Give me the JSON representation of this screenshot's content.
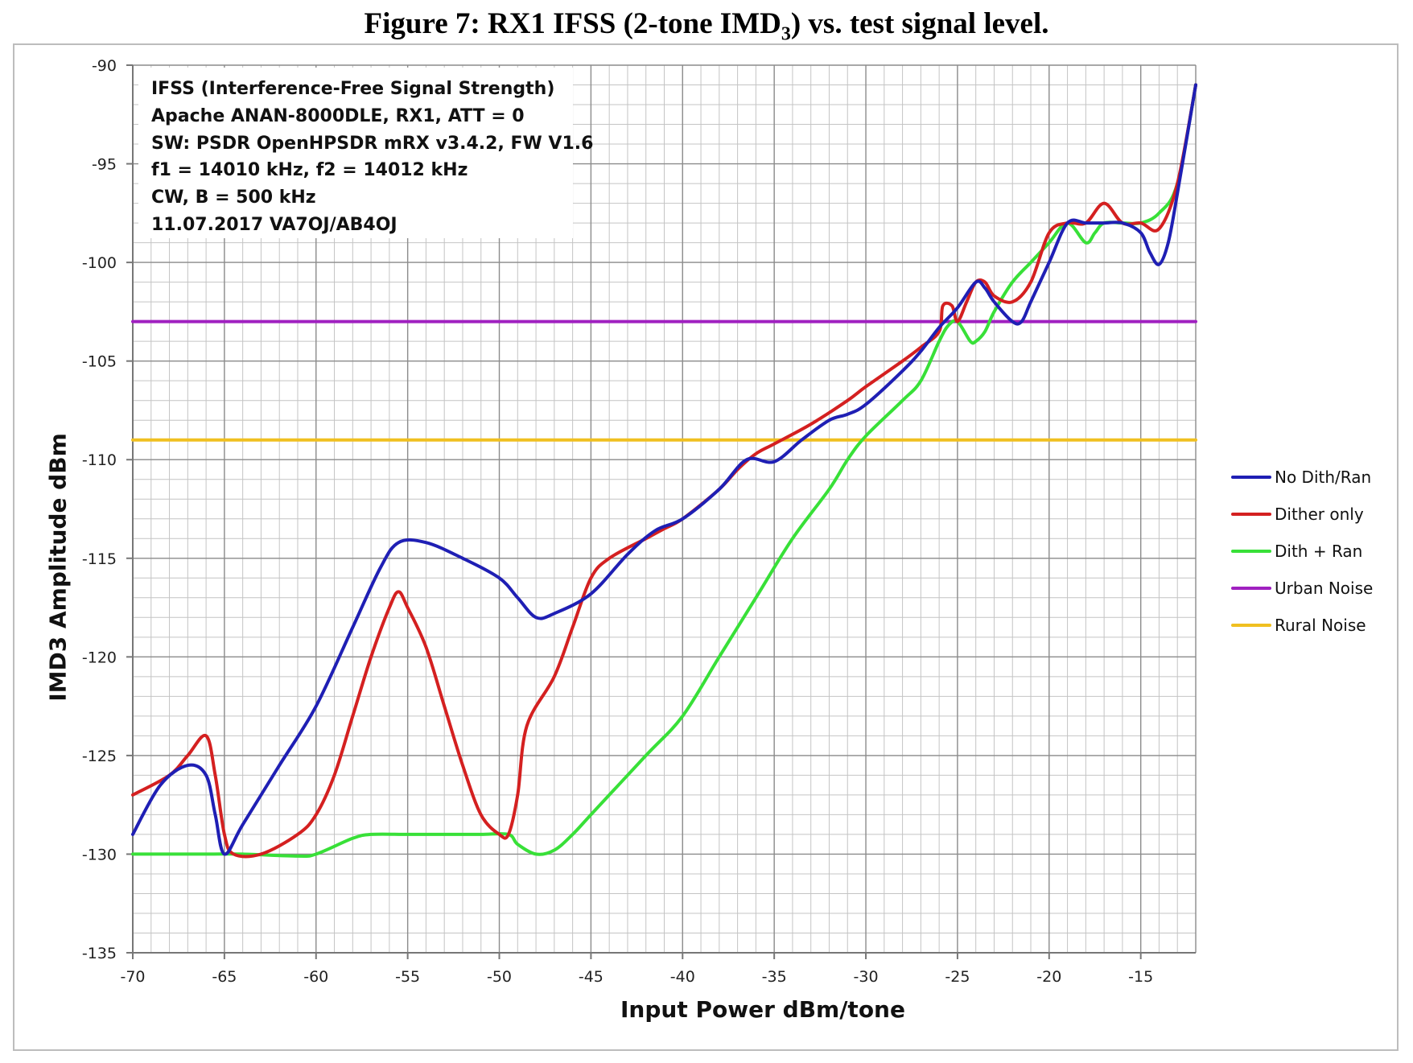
{
  "figure": {
    "title_main": "Figure 7: RX1 IFSS (2-tone IMD",
    "title_sub": "3",
    "title_tail": ") vs. test signal level."
  },
  "info_box": [
    "IFSS (Interference-Free Signal Strength)",
    "Apache ANAN-8000DLE, RX1, ATT = 0",
    "SW: PSDR OpenHPSDR mRX v3.4.2,  FW V1.6",
    "f1 = 14010  kHz, f2 = 14012  kHz",
    "CW, B = 500  kHz",
    "11.07.2017   VA7OJ/AB4OJ"
  ],
  "chart_data": {
    "type": "line",
    "xlabel": "Input Power dBm/tone",
    "ylabel": "IMD3 Amplitude  dBm",
    "xlim": [
      -70,
      -12
    ],
    "ylim": [
      -135,
      -90
    ],
    "xticks": [
      -70,
      -65,
      -60,
      -55,
      -50,
      -45,
      -40,
      -35,
      -30,
      -25,
      -20,
      -15
    ],
    "xtick_labels": [
      "-70",
      "-65",
      "-60",
      "-55",
      "-50",
      "-45",
      "-40",
      "-35",
      "-30",
      "-25",
      "-20",
      "-15"
    ],
    "yticks": [
      -90,
      -95,
      -100,
      -105,
      -110,
      -115,
      -120,
      -125,
      -130,
      -135
    ],
    "ytick_labels": [
      "-90",
      "-95",
      "-100",
      "-105",
      "-110",
      "-115",
      "-120",
      "-125",
      "-130",
      "-135"
    ],
    "grid": true,
    "legend_position": "right",
    "series": [
      {
        "name": "No Dith/Ran",
        "color": "#1f1fb4",
        "points": [
          [
            -70,
            -129
          ],
          [
            -68.5,
            -126.5
          ],
          [
            -67,
            -125.5
          ],
          [
            -66,
            -126
          ],
          [
            -65.5,
            -128
          ],
          [
            -65,
            -130
          ],
          [
            -64,
            -128.5
          ],
          [
            -62,
            -125.5
          ],
          [
            -60,
            -122.5
          ],
          [
            -58,
            -118.5
          ],
          [
            -56.5,
            -115.5
          ],
          [
            -55.5,
            -114.2
          ],
          [
            -54,
            -114.2
          ],
          [
            -52,
            -115
          ],
          [
            -50,
            -116
          ],
          [
            -49,
            -117
          ],
          [
            -48,
            -118
          ],
          [
            -47,
            -117.8
          ],
          [
            -45,
            -116.8
          ],
          [
            -43,
            -114.8
          ],
          [
            -41.5,
            -113.6
          ],
          [
            -40,
            -113
          ],
          [
            -38,
            -111.5
          ],
          [
            -36.5,
            -110
          ],
          [
            -35,
            -110.1
          ],
          [
            -33.5,
            -109
          ],
          [
            -32,
            -108
          ],
          [
            -31,
            -107.7
          ],
          [
            -30,
            -107.2
          ],
          [
            -28,
            -105.5
          ],
          [
            -27,
            -104.5
          ],
          [
            -26,
            -103.3
          ],
          [
            -25,
            -102.3
          ],
          [
            -24,
            -101
          ],
          [
            -23.5,
            -101.3
          ],
          [
            -23,
            -102
          ],
          [
            -22,
            -103
          ],
          [
            -21.5,
            -103
          ],
          [
            -21,
            -102
          ],
          [
            -20,
            -100
          ],
          [
            -19,
            -98
          ],
          [
            -18,
            -98
          ],
          [
            -17,
            -98
          ],
          [
            -16,
            -98
          ],
          [
            -15,
            -98.5
          ],
          [
            -14.5,
            -99.5
          ],
          [
            -14,
            -100.1
          ],
          [
            -13.5,
            -99
          ],
          [
            -13,
            -96.5
          ],
          [
            -12,
            -91
          ]
        ]
      },
      {
        "name": "Dither only",
        "color": "#d42020",
        "points": [
          [
            -70,
            -127
          ],
          [
            -68,
            -126
          ],
          [
            -67,
            -125
          ],
          [
            -66,
            -124
          ],
          [
            -65.5,
            -126
          ],
          [
            -65,
            -129
          ],
          [
            -64.5,
            -130
          ],
          [
            -63,
            -130
          ],
          [
            -61,
            -129
          ],
          [
            -60,
            -128
          ],
          [
            -59,
            -126
          ],
          [
            -58,
            -123
          ],
          [
            -57,
            -120
          ],
          [
            -56,
            -117.5
          ],
          [
            -55.5,
            -116.7
          ],
          [
            -55,
            -117.5
          ],
          [
            -54,
            -119.5
          ],
          [
            -53,
            -122.5
          ],
          [
            -52,
            -125.5
          ],
          [
            -51,
            -128
          ],
          [
            -50,
            -129
          ],
          [
            -49.5,
            -129
          ],
          [
            -49,
            -127
          ],
          [
            -48.5,
            -123.5
          ],
          [
            -47,
            -121
          ],
          [
            -46,
            -118.5
          ],
          [
            -45,
            -116
          ],
          [
            -44,
            -115
          ],
          [
            -42,
            -114
          ],
          [
            -41,
            -113.5
          ],
          [
            -40,
            -113
          ],
          [
            -38,
            -111.5
          ],
          [
            -37,
            -110.5
          ],
          [
            -36,
            -109.7
          ],
          [
            -35,
            -109.2
          ],
          [
            -33,
            -108.2
          ],
          [
            -31,
            -107
          ],
          [
            -30,
            -106.3
          ],
          [
            -28,
            -105
          ],
          [
            -27,
            -104.3
          ],
          [
            -26,
            -103.5
          ],
          [
            -25.8,
            -102.2
          ],
          [
            -25.3,
            -102.2
          ],
          [
            -25,
            -103
          ],
          [
            -24.5,
            -102
          ],
          [
            -24,
            -101
          ],
          [
            -23.5,
            -101
          ],
          [
            -23,
            -101.7
          ],
          [
            -22,
            -102
          ],
          [
            -21,
            -101
          ],
          [
            -20,
            -98.5
          ],
          [
            -19,
            -98
          ],
          [
            -18,
            -98
          ],
          [
            -17,
            -97
          ],
          [
            -16,
            -98
          ],
          [
            -15,
            -98
          ],
          [
            -14,
            -98.3
          ],
          [
            -13,
            -96
          ],
          [
            -12,
            -91
          ]
        ]
      },
      {
        "name": "Dith + Ran",
        "color": "#38e038",
        "points": [
          [
            -70,
            -130
          ],
          [
            -66,
            -130
          ],
          [
            -64,
            -130
          ],
          [
            -61,
            -130.1
          ],
          [
            -60,
            -130
          ],
          [
            -58,
            -129.2
          ],
          [
            -57,
            -129
          ],
          [
            -55,
            -129
          ],
          [
            -53,
            -129
          ],
          [
            -51,
            -129
          ],
          [
            -49.5,
            -129
          ],
          [
            -49,
            -129.5
          ],
          [
            -48,
            -130
          ],
          [
            -47,
            -129.8
          ],
          [
            -46,
            -129
          ],
          [
            -45,
            -128
          ],
          [
            -42,
            -125
          ],
          [
            -40,
            -123
          ],
          [
            -38,
            -120
          ],
          [
            -36,
            -117
          ],
          [
            -34,
            -114
          ],
          [
            -32,
            -111.5
          ],
          [
            -31,
            -110
          ],
          [
            -30,
            -108.8
          ],
          [
            -28,
            -107
          ],
          [
            -27,
            -106
          ],
          [
            -26,
            -104
          ],
          [
            -25.5,
            -103.2
          ],
          [
            -25,
            -103
          ],
          [
            -24.3,
            -104
          ],
          [
            -24,
            -104
          ],
          [
            -23.5,
            -103.5
          ],
          [
            -23,
            -102.5
          ],
          [
            -22,
            -101
          ],
          [
            -21,
            -100
          ],
          [
            -20,
            -99
          ],
          [
            -19,
            -98
          ],
          [
            -18,
            -99
          ],
          [
            -17.5,
            -98.5
          ],
          [
            -17,
            -98
          ],
          [
            -16,
            -98
          ],
          [
            -15,
            -98
          ],
          [
            -14,
            -97.5
          ],
          [
            -13,
            -96
          ],
          [
            -12,
            -91
          ]
        ]
      },
      {
        "name": "Urban Noise",
        "color": "#a020c0",
        "points": [
          [
            -70,
            -103
          ],
          [
            -12,
            -103
          ]
        ]
      },
      {
        "name": "Rural Noise",
        "color": "#f0c020",
        "points": [
          [
            -70,
            -109
          ],
          [
            -12,
            -109
          ]
        ]
      }
    ]
  }
}
